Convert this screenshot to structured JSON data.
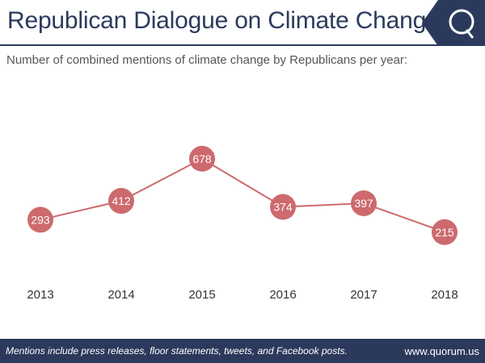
{
  "header": {
    "title": "Republican Dialogue on Climate Change",
    "logo_icon": "quorum-q-logo-icon"
  },
  "chart_data": {
    "type": "line",
    "title": "Republican Dialogue on Climate Change",
    "subtitle": "Number of combined mentions of climate change by Republicans per year:",
    "categories": [
      "2013",
      "2014",
      "2015",
      "2016",
      "2017",
      "2018"
    ],
    "series": [
      {
        "values": [
          293,
          412,
          678,
          374,
          397,
          215
        ]
      }
    ],
    "ylim": [
      0,
      800
    ],
    "grid": false,
    "xlabel": "",
    "ylabel": ""
  },
  "footer": {
    "note": "Mentions include press releases, floor statements, tweets, and Facebook posts.",
    "url": "www.quorum.us"
  },
  "colors": {
    "navy": "#2b3a5c",
    "marker": "#cd6a6e",
    "line": "#cd6a6e",
    "text_gray": "#555555"
  }
}
